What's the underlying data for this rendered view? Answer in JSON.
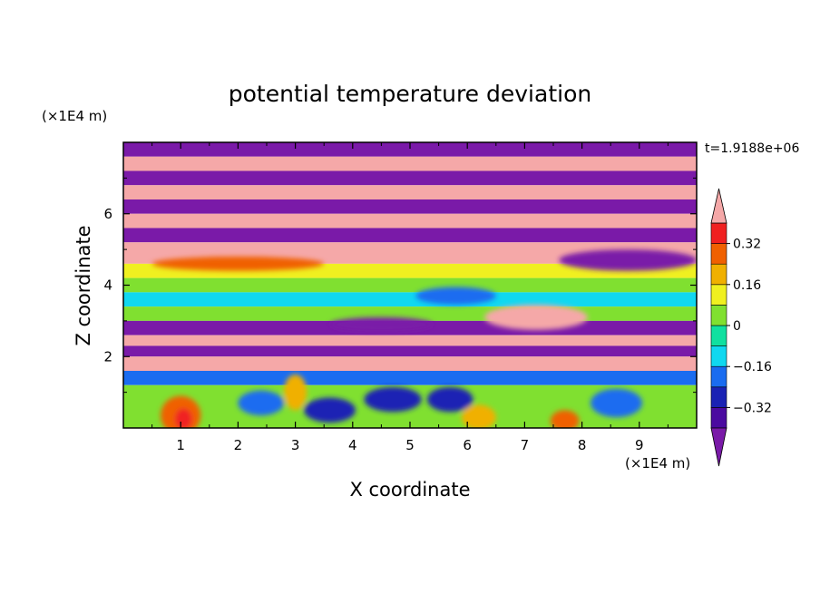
{
  "chart_data": {
    "type": "heatmap",
    "title": "potential temperature deviation",
    "xlabel": "X coordinate",
    "ylabel": "Z coordinate",
    "x_unit": "(×1E4 m)",
    "y_unit": "(×1E4 m)",
    "time_label": "t=1.9188e+06",
    "xlim": [
      0,
      10
    ],
    "ylim": [
      0,
      8
    ],
    "x_ticks": [
      "1",
      "2",
      "3",
      "4",
      "5",
      "6",
      "7",
      "8",
      "9"
    ],
    "y_ticks": [
      "2",
      "4",
      "6"
    ],
    "colorbar": {
      "labels": [
        "0.32",
        "0.16",
        "0",
        "−0.16",
        "−0.32"
      ],
      "label_values": [
        0.32,
        0.16,
        0,
        -0.16,
        -0.32
      ],
      "levels": [
        -0.4,
        -0.32,
        -0.24,
        -0.16,
        -0.08,
        0,
        0.08,
        0.16,
        0.24,
        0.32,
        0.4
      ],
      "colors": [
        "#4b0aa0",
        "#1a22b4",
        "#1a6cf0",
        "#10d8f0",
        "#10e0a0",
        "#80e030",
        "#f0f020",
        "#f0b000",
        "#f06000",
        "#f02020"
      ],
      "under_color": "#7a1aa8",
      "over_color": "#f5a8a8"
    },
    "bands": [
      {
        "z0": 7.6,
        "z1": 8.0,
        "value": -0.45
      },
      {
        "z0": 7.2,
        "z1": 7.6,
        "value": 0.45
      },
      {
        "z0": 6.8,
        "z1": 7.2,
        "value": -0.45
      },
      {
        "z0": 6.4,
        "z1": 6.8,
        "value": 0.45
      },
      {
        "z0": 6.0,
        "z1": 6.4,
        "value": -0.45
      },
      {
        "z0": 5.6,
        "z1": 6.0,
        "value": 0.45
      },
      {
        "z0": 5.2,
        "z1": 5.6,
        "value": -0.45
      },
      {
        "z0": 4.6,
        "z1": 5.2,
        "value": 0.45
      },
      {
        "z0": 4.2,
        "z1": 4.6,
        "value": 0.12
      },
      {
        "z0": 3.8,
        "z1": 4.2,
        "value": 0.04
      },
      {
        "z0": 3.4,
        "z1": 3.8,
        "value": -0.12
      },
      {
        "z0": 3.0,
        "z1": 3.4,
        "value": 0.04
      },
      {
        "z0": 2.6,
        "z1": 3.0,
        "value": -0.45
      },
      {
        "z0": 2.3,
        "z1": 2.6,
        "value": 0.45
      },
      {
        "z0": 2.0,
        "z1": 2.3,
        "value": -0.45
      },
      {
        "z0": 1.6,
        "z1": 2.0,
        "value": 0.45
      },
      {
        "z0": 1.2,
        "z1": 1.6,
        "value": -0.2
      },
      {
        "z0": 0.0,
        "z1": 1.2,
        "value": 0.0
      }
    ],
    "blobs": [
      {
        "x": 1.0,
        "z": 0.35,
        "rx": 0.35,
        "rz": 0.55,
        "value": 0.3
      },
      {
        "x": 1.05,
        "z": 0.25,
        "rx": 0.15,
        "rz": 0.3,
        "value": 0.36
      },
      {
        "x": 2.4,
        "z": 0.7,
        "rx": 0.4,
        "rz": 0.35,
        "value": -0.2
      },
      {
        "x": 3.6,
        "z": 0.5,
        "rx": 0.45,
        "rz": 0.35,
        "value": -0.3
      },
      {
        "x": 4.7,
        "z": 0.8,
        "rx": 0.5,
        "rz": 0.35,
        "value": -0.3
      },
      {
        "x": 5.7,
        "z": 0.8,
        "rx": 0.4,
        "rz": 0.35,
        "value": -0.3
      },
      {
        "x": 6.2,
        "z": 0.3,
        "rx": 0.3,
        "rz": 0.35,
        "value": 0.2
      },
      {
        "x": 7.7,
        "z": 0.2,
        "rx": 0.25,
        "rz": 0.3,
        "value": 0.3
      },
      {
        "x": 8.6,
        "z": 0.7,
        "rx": 0.45,
        "rz": 0.4,
        "value": -0.2
      },
      {
        "x": 3.0,
        "z": 1.0,
        "rx": 0.2,
        "rz": 0.5,
        "value": 0.2
      },
      {
        "x": 7.2,
        "z": 3.1,
        "rx": 0.9,
        "rz": 0.35,
        "value": 0.45
      },
      {
        "x": 4.5,
        "z": 2.9,
        "rx": 0.9,
        "rz": 0.2,
        "value": -0.45
      },
      {
        "x": 5.8,
        "z": 3.7,
        "rx": 0.7,
        "rz": 0.25,
        "value": -0.2
      },
      {
        "x": 8.8,
        "z": 4.7,
        "rx": 1.2,
        "rz": 0.3,
        "value": -0.45
      },
      {
        "x": 2.0,
        "z": 4.6,
        "rx": 1.5,
        "rz": 0.2,
        "value": 0.3
      }
    ]
  }
}
